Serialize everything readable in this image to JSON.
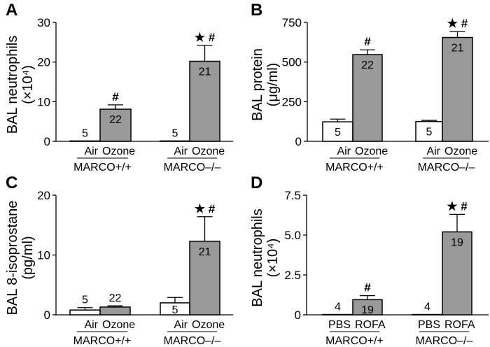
{
  "chart_data": [
    {
      "panel": "A",
      "type": "bar",
      "ylabel": "BAL neutrophils",
      "ylabel2": "(×10⁴)",
      "ylim": [
        0,
        30
      ],
      "yticks": [
        "0",
        "10",
        "20",
        "30"
      ],
      "ytick_values": [
        0,
        10,
        20,
        30
      ],
      "groups": [
        {
          "label": "MARCO+/+",
          "bars": [
            {
              "category": "Air",
              "value": 0.1,
              "error": 0,
              "n": "5",
              "annotation": "",
              "fill": "#ffffff"
            },
            {
              "category": "Ozone",
              "value": 8.1,
              "error": 1.1,
              "n": "22",
              "annotation": "#",
              "fill": "#999999"
            }
          ]
        },
        {
          "label": "MARCO–/–",
          "bars": [
            {
              "category": "Air",
              "value": 0.1,
              "error": 0,
              "n": "5",
              "annotation": "",
              "fill": "#ffffff"
            },
            {
              "category": "Ozone",
              "value": 20.2,
              "error": 4.0,
              "n": "21",
              "annotation": "*#",
              "fill": "#999999"
            }
          ]
        }
      ]
    },
    {
      "panel": "B",
      "type": "bar",
      "ylabel": "BAL protein",
      "ylabel2": "(μg/ml)",
      "ylim": [
        0,
        750
      ],
      "yticks": [
        "0",
        "250",
        "500",
        "750"
      ],
      "ytick_values": [
        0,
        250,
        500,
        750
      ],
      "groups": [
        {
          "label": "MARCO+/+",
          "bars": [
            {
              "category": "Air",
              "value": 123,
              "error": 17,
              "n": "5",
              "annotation": "",
              "fill": "#ffffff"
            },
            {
              "category": "Ozone",
              "value": 547,
              "error": 30,
              "n": "22",
              "annotation": "#",
              "fill": "#999999"
            }
          ]
        },
        {
          "label": "MARCO–/–",
          "bars": [
            {
              "category": "Air",
              "value": 125,
              "error": 7,
              "n": "5",
              "annotation": "",
              "fill": "#ffffff"
            },
            {
              "category": "Ozone",
              "value": 655,
              "error": 37,
              "n": "21",
              "annotation": "*#",
              "fill": "#999999"
            }
          ]
        }
      ]
    },
    {
      "panel": "C",
      "type": "bar",
      "ylabel": "BAL 8-isoprostane",
      "ylabel2": "(pg/ml)",
      "ylim": [
        0,
        20
      ],
      "yticks": [
        "0",
        "10",
        "20"
      ],
      "ytick_values": [
        0,
        10,
        20
      ],
      "groups": [
        {
          "label": "MARCO+/+",
          "bars": [
            {
              "category": "Air",
              "value": 0.8,
              "error": 0.4,
              "n": "5",
              "annotation": "",
              "fill": "#ffffff"
            },
            {
              "category": "Ozone",
              "value": 1.3,
              "error": 0.2,
              "n": "22",
              "annotation": "",
              "fill": "#999999"
            }
          ]
        },
        {
          "label": "MARCO–/–",
          "bars": [
            {
              "category": "Air",
              "value": 2.0,
              "error": 0.9,
              "n": "5",
              "annotation": "",
              "fill": "#ffffff"
            },
            {
              "category": "Ozone",
              "value": 12.3,
              "error": 4.1,
              "n": "21",
              "annotation": "*#",
              "fill": "#999999"
            }
          ]
        }
      ]
    },
    {
      "panel": "D",
      "type": "bar",
      "ylabel": "BAL neutrophils",
      "ylabel2": "(×10⁴)",
      "ylim": [
        0,
        7.5
      ],
      "yticks": [
        "0",
        "2.5",
        "5.0",
        "7.5"
      ],
      "ytick_values": [
        0,
        2.5,
        5,
        7.5
      ],
      "groups": [
        {
          "label": "MARCO+/+",
          "bars": [
            {
              "category": "PBS",
              "value": 0.02,
              "error": 0,
              "n": "4",
              "annotation": "",
              "fill": "#ffffff"
            },
            {
              "category": "ROFA",
              "value": 0.95,
              "error": 0.25,
              "n": "19",
              "annotation": "#",
              "fill": "#999999"
            }
          ]
        },
        {
          "label": "MARCO–/–",
          "bars": [
            {
              "category": "PBS",
              "value": 0.02,
              "error": 0,
              "n": "4",
              "annotation": "",
              "fill": "#ffffff"
            },
            {
              "category": "ROFA",
              "value": 5.2,
              "error": 1.1,
              "n": "19",
              "annotation": "*#",
              "fill": "#999999"
            }
          ]
        }
      ]
    }
  ]
}
